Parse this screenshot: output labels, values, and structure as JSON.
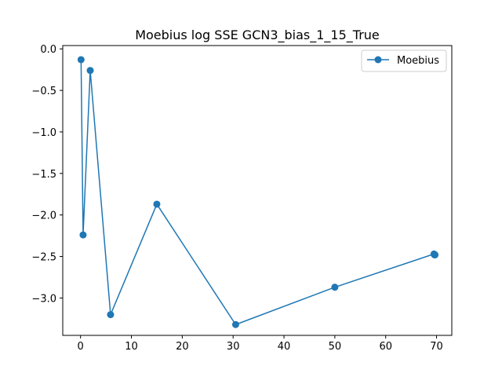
{
  "chart_data": {
    "type": "line",
    "title": "Moebius log SSE GCN3_bias_1_15_True",
    "xlabel": "",
    "ylabel": "",
    "xlim": [
      -3.5,
      73
    ],
    "ylim": [
      -3.45,
      0.04
    ],
    "xticks": [
      0,
      10,
      20,
      30,
      40,
      50,
      60,
      70
    ],
    "xtick_labels": [
      "0",
      "10",
      "20",
      "30",
      "40",
      "50",
      "60",
      "70"
    ],
    "yticks": [
      0.0,
      -0.5,
      -1.0,
      -1.5,
      -2.0,
      -2.5,
      -3.0
    ],
    "ytick_labels": [
      "0.0",
      "−0.5",
      "−1.0",
      "−1.5",
      "−2.0",
      "−2.5",
      "−3.0"
    ],
    "grid": false,
    "legend_position": "top-right",
    "series": [
      {
        "name": "Moebius",
        "color": "#1f77b4",
        "marker": "circle",
        "x": [
          0.1,
          0.5,
          1.9,
          5.9,
          15.0,
          30.5,
          50.0,
          69.5,
          69.6,
          69.7
        ],
        "y": [
          -0.13,
          -2.24,
          -0.26,
          -3.2,
          -1.87,
          -3.32,
          -2.87,
          -2.47,
          -2.48,
          -2.48
        ]
      }
    ]
  }
}
